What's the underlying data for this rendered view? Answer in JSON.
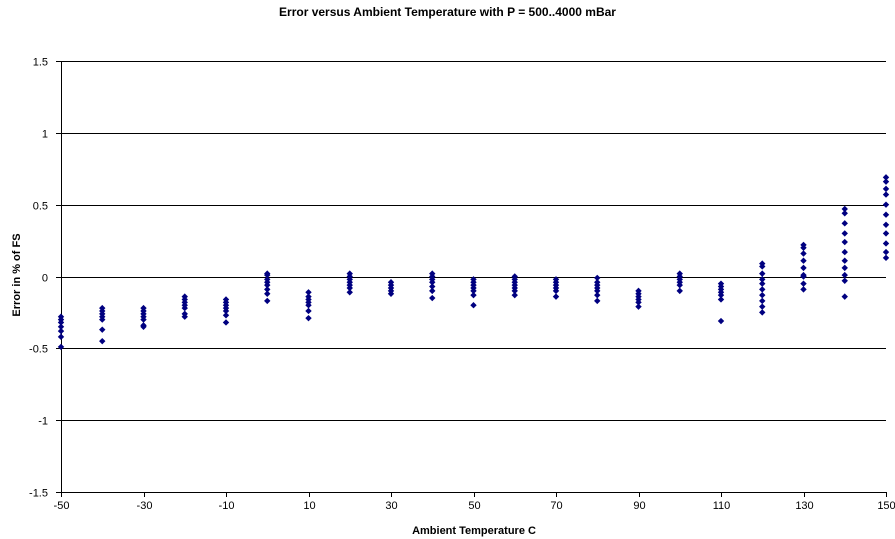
{
  "chart_data": {
    "type": "scatter",
    "title": "Error versus Ambient Temperature with P = 500..4000 mBar",
    "xlabel": "Ambient Temperature C",
    "ylabel": "Error in % of FS",
    "xlim": [
      -50,
      150
    ],
    "ylim": [
      -1.5,
      1.5
    ],
    "x_ticks": [
      "-50",
      "-30",
      "-10",
      "10",
      "30",
      "50",
      "70",
      "90",
      "110",
      "130",
      "150"
    ],
    "y_ticks": [
      "1.5",
      "1",
      "0.5",
      "0",
      "-0.5",
      "-1",
      "-1.5"
    ],
    "y_tick_values": [
      1.5,
      1,
      0.5,
      0,
      -0.5,
      -1,
      -1.5
    ],
    "x_tick_values": [
      -50,
      -30,
      -10,
      10,
      30,
      50,
      70,
      90,
      110,
      130,
      150
    ],
    "grid": "horizontal major gridlines",
    "marker": "diamond",
    "color": "#000080",
    "points": [
      [
        -50,
        -0.28
      ],
      [
        -50,
        -0.3
      ],
      [
        -50,
        -0.32
      ],
      [
        -50,
        -0.35
      ],
      [
        -50,
        -0.38
      ],
      [
        -50,
        -0.42
      ],
      [
        -50,
        -0.49
      ],
      [
        -40,
        -0.22
      ],
      [
        -40,
        -0.24
      ],
      [
        -40,
        -0.26
      ],
      [
        -40,
        -0.28
      ],
      [
        -40,
        -0.3
      ],
      [
        -40,
        -0.37
      ],
      [
        -40,
        -0.45
      ],
      [
        -30,
        -0.22
      ],
      [
        -30,
        -0.24
      ],
      [
        -30,
        -0.26
      ],
      [
        -30,
        -0.28
      ],
      [
        -30,
        -0.3
      ],
      [
        -30,
        -0.34
      ],
      [
        -30,
        -0.35
      ],
      [
        -20,
        -0.14
      ],
      [
        -20,
        -0.16
      ],
      [
        -20,
        -0.18
      ],
      [
        -20,
        -0.2
      ],
      [
        -20,
        -0.22
      ],
      [
        -20,
        -0.26
      ],
      [
        -20,
        -0.28
      ],
      [
        -10,
        -0.16
      ],
      [
        -10,
        -0.18
      ],
      [
        -10,
        -0.2
      ],
      [
        -10,
        -0.22
      ],
      [
        -10,
        -0.24
      ],
      [
        -10,
        -0.27
      ],
      [
        -10,
        -0.32
      ],
      [
        0,
        0.02
      ],
      [
        0,
        0.01
      ],
      [
        0,
        -0.02
      ],
      [
        0,
        -0.04
      ],
      [
        0,
        -0.06
      ],
      [
        0,
        -0.09
      ],
      [
        0,
        -0.12
      ],
      [
        0,
        -0.17
      ],
      [
        10,
        -0.11
      ],
      [
        10,
        -0.14
      ],
      [
        10,
        -0.16
      ],
      [
        10,
        -0.18
      ],
      [
        10,
        -0.2
      ],
      [
        10,
        -0.24
      ],
      [
        10,
        -0.29
      ],
      [
        20,
        0.02
      ],
      [
        20,
        0.0
      ],
      [
        20,
        -0.02
      ],
      [
        20,
        -0.04
      ],
      [
        20,
        -0.06
      ],
      [
        20,
        -0.08
      ],
      [
        20,
        -0.11
      ],
      [
        30,
        -0.04
      ],
      [
        30,
        -0.06
      ],
      [
        30,
        -0.08
      ],
      [
        30,
        -0.1
      ],
      [
        30,
        -0.12
      ],
      [
        40,
        0.02
      ],
      [
        40,
        0.0
      ],
      [
        40,
        -0.02
      ],
      [
        40,
        -0.04
      ],
      [
        40,
        -0.07
      ],
      [
        40,
        -0.1
      ],
      [
        40,
        -0.15
      ],
      [
        50,
        -0.02
      ],
      [
        50,
        -0.04
      ],
      [
        50,
        -0.06
      ],
      [
        50,
        -0.08
      ],
      [
        50,
        -0.1
      ],
      [
        50,
        -0.13
      ],
      [
        50,
        -0.2
      ],
      [
        60,
        0.0
      ],
      [
        60,
        -0.02
      ],
      [
        60,
        -0.04
      ],
      [
        60,
        -0.06
      ],
      [
        60,
        -0.08
      ],
      [
        60,
        -0.1
      ],
      [
        60,
        -0.13
      ],
      [
        70,
        -0.02
      ],
      [
        70,
        -0.04
      ],
      [
        70,
        -0.06
      ],
      [
        70,
        -0.08
      ],
      [
        70,
        -0.1
      ],
      [
        70,
        -0.14
      ],
      [
        80,
        -0.01
      ],
      [
        80,
        -0.04
      ],
      [
        80,
        -0.06
      ],
      [
        80,
        -0.08
      ],
      [
        80,
        -0.1
      ],
      [
        80,
        -0.13
      ],
      [
        80,
        -0.17
      ],
      [
        90,
        -0.1
      ],
      [
        90,
        -0.12
      ],
      [
        90,
        -0.14
      ],
      [
        90,
        -0.16
      ],
      [
        90,
        -0.18
      ],
      [
        90,
        -0.21
      ],
      [
        100,
        0.02
      ],
      [
        100,
        0.0
      ],
      [
        100,
        -0.02
      ],
      [
        100,
        -0.04
      ],
      [
        100,
        -0.06
      ],
      [
        100,
        -0.1
      ],
      [
        110,
        -0.05
      ],
      [
        110,
        -0.07
      ],
      [
        110,
        -0.09
      ],
      [
        110,
        -0.11
      ],
      [
        110,
        -0.13
      ],
      [
        110,
        -0.16
      ],
      [
        110,
        -0.31
      ],
      [
        120,
        0.09
      ],
      [
        120,
        0.07
      ],
      [
        120,
        0.02
      ],
      [
        120,
        -0.02
      ],
      [
        120,
        -0.05
      ],
      [
        120,
        -0.09
      ],
      [
        120,
        -0.13
      ],
      [
        120,
        -0.17
      ],
      [
        120,
        -0.21
      ],
      [
        120,
        -0.25
      ],
      [
        130,
        0.22
      ],
      [
        130,
        0.2
      ],
      [
        130,
        0.16
      ],
      [
        130,
        0.11
      ],
      [
        130,
        0.06
      ],
      [
        130,
        0.01
      ],
      [
        130,
        0.0
      ],
      [
        130,
        -0.05
      ],
      [
        130,
        -0.09
      ],
      [
        140,
        0.47
      ],
      [
        140,
        0.44
      ],
      [
        140,
        0.37
      ],
      [
        140,
        0.3
      ],
      [
        140,
        0.24
      ],
      [
        140,
        0.17
      ],
      [
        140,
        0.11
      ],
      [
        140,
        0.06
      ],
      [
        140,
        0.01
      ],
      [
        140,
        -0.03
      ],
      [
        140,
        -0.14
      ],
      [
        150,
        0.69
      ],
      [
        150,
        0.66
      ],
      [
        150,
        0.61
      ],
      [
        150,
        0.57
      ],
      [
        150,
        0.5
      ],
      [
        150,
        0.43
      ],
      [
        150,
        0.36
      ],
      [
        150,
        0.3
      ],
      [
        150,
        0.23
      ],
      [
        150,
        0.17
      ],
      [
        150,
        0.13
      ]
    ]
  }
}
